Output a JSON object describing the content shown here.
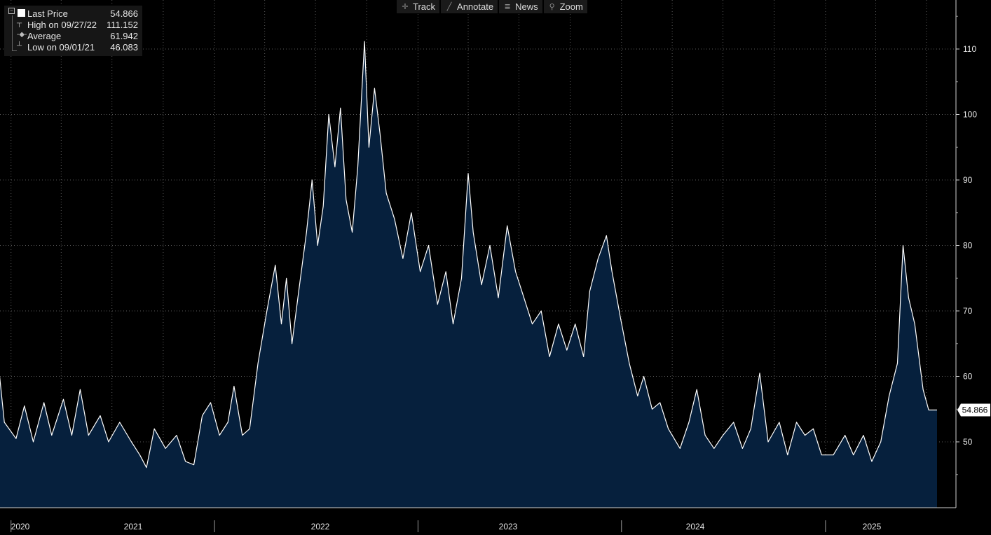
{
  "toolbar": {
    "track": "Track",
    "annotate": "Annotate",
    "news": "News",
    "zoom": "Zoom"
  },
  "legend": {
    "last_label": "Last Price",
    "last_value": "54.866",
    "high_label": "High on 09/27/22",
    "high_value": "111.152",
    "avg_label": "Average",
    "avg_value": "61.942",
    "low_label": "Low on 09/01/21",
    "low_value": "46.083"
  },
  "colors": {
    "background": "#000000",
    "area_fill": "#06203d",
    "line": "#ffffff",
    "grid": "#5a5a5a"
  },
  "chart_data": {
    "type": "area",
    "title": "",
    "xlabel": "",
    "ylabel": "",
    "ylim": [
      40,
      115
    ],
    "x_range": [
      "2020-11-20",
      "2025-07-20"
    ],
    "yticks": [
      50,
      60,
      70,
      80,
      90,
      100,
      110
    ],
    "year_labels": [
      "2020",
      "2021",
      "2022",
      "2023",
      "2024",
      "2025"
    ],
    "grid": true,
    "last_price_label": "54.866",
    "series": [
      {
        "name": "Last Price",
        "points": [
          [
            "2020-11-20",
            58
          ],
          [
            "2020-12-05",
            65.5
          ],
          [
            "2020-12-20",
            53
          ],
          [
            "2021-01-10",
            50.5
          ],
          [
            "2021-01-25",
            55.5
          ],
          [
            "2021-02-10",
            50
          ],
          [
            "2021-03-01",
            56
          ],
          [
            "2021-03-15",
            51
          ],
          [
            "2021-04-05",
            56.5
          ],
          [
            "2021-04-20",
            51
          ],
          [
            "2021-05-05",
            58
          ],
          [
            "2021-05-20",
            51
          ],
          [
            "2021-06-10",
            54
          ],
          [
            "2021-06-25",
            50
          ],
          [
            "2021-07-15",
            53
          ],
          [
            "2021-08-05",
            50
          ],
          [
            "2021-08-20",
            48
          ],
          [
            "2021-09-01",
            46.08
          ],
          [
            "2021-09-15",
            52
          ],
          [
            "2021-10-05",
            49
          ],
          [
            "2021-10-25",
            51
          ],
          [
            "2021-11-10",
            47
          ],
          [
            "2021-11-25",
            46.5
          ],
          [
            "2021-12-10",
            54
          ],
          [
            "2021-12-25",
            56
          ],
          [
            "2022-01-10",
            51
          ],
          [
            "2022-01-25",
            53
          ],
          [
            "2022-02-05",
            58.5
          ],
          [
            "2022-02-20",
            51
          ],
          [
            "2022-03-05",
            52
          ],
          [
            "2022-03-20",
            62
          ],
          [
            "2022-04-05",
            70
          ],
          [
            "2022-04-20",
            77
          ],
          [
            "2022-05-01",
            68
          ],
          [
            "2022-05-10",
            75
          ],
          [
            "2022-05-20",
            65
          ],
          [
            "2022-06-01",
            73
          ],
          [
            "2022-06-15",
            82
          ],
          [
            "2022-06-25",
            90
          ],
          [
            "2022-07-05",
            80
          ],
          [
            "2022-07-15",
            86
          ],
          [
            "2022-07-25",
            100
          ],
          [
            "2022-08-05",
            92
          ],
          [
            "2022-08-15",
            101
          ],
          [
            "2022-08-25",
            87
          ],
          [
            "2022-09-05",
            82
          ],
          [
            "2022-09-15",
            92
          ],
          [
            "2022-09-27",
            111.15
          ],
          [
            "2022-10-05",
            95
          ],
          [
            "2022-10-15",
            104
          ],
          [
            "2022-10-25",
            97
          ],
          [
            "2022-11-05",
            88
          ],
          [
            "2022-11-20",
            84
          ],
          [
            "2022-12-05",
            78
          ],
          [
            "2022-12-20",
            85
          ],
          [
            "2023-01-05",
            76
          ],
          [
            "2023-01-20",
            80
          ],
          [
            "2023-02-05",
            71
          ],
          [
            "2023-02-20",
            76
          ],
          [
            "2023-03-05",
            68
          ],
          [
            "2023-03-20",
            75
          ],
          [
            "2023-04-01",
            91
          ],
          [
            "2023-04-10",
            82
          ],
          [
            "2023-04-25",
            74
          ],
          [
            "2023-05-10",
            80
          ],
          [
            "2023-05-25",
            72
          ],
          [
            "2023-06-10",
            83
          ],
          [
            "2023-06-25",
            76
          ],
          [
            "2023-07-10",
            72
          ],
          [
            "2023-07-25",
            68
          ],
          [
            "2023-08-10",
            70
          ],
          [
            "2023-08-25",
            63
          ],
          [
            "2023-09-10",
            68
          ],
          [
            "2023-09-25",
            64
          ],
          [
            "2023-10-10",
            68
          ],
          [
            "2023-10-25",
            63
          ],
          [
            "2023-11-05",
            73
          ],
          [
            "2023-11-20",
            78
          ],
          [
            "2023-12-05",
            81.5
          ],
          [
            "2023-12-15",
            76
          ],
          [
            "2023-12-30",
            69
          ],
          [
            "2024-01-15",
            62
          ],
          [
            "2024-01-30",
            57
          ],
          [
            "2024-02-10",
            60
          ],
          [
            "2024-02-25",
            55
          ],
          [
            "2024-03-10",
            56
          ],
          [
            "2024-03-25",
            52
          ],
          [
            "2024-04-15",
            49
          ],
          [
            "2024-05-01",
            53
          ],
          [
            "2024-05-15",
            58
          ],
          [
            "2024-05-30",
            51
          ],
          [
            "2024-06-15",
            49
          ],
          [
            "2024-07-01",
            51
          ],
          [
            "2024-07-20",
            53
          ],
          [
            "2024-08-05",
            49
          ],
          [
            "2024-08-20",
            52
          ],
          [
            "2024-09-05",
            60.5
          ],
          [
            "2024-09-20",
            50
          ],
          [
            "2024-10-10",
            53
          ],
          [
            "2024-10-25",
            48
          ],
          [
            "2024-11-10",
            53
          ],
          [
            "2024-11-25",
            51
          ],
          [
            "2024-12-10",
            52
          ],
          [
            "2024-12-25",
            48
          ],
          [
            "2025-01-15",
            48
          ],
          [
            "2025-02-05",
            51
          ],
          [
            "2025-02-20",
            48
          ],
          [
            "2025-03-10",
            51
          ],
          [
            "2025-03-25",
            47
          ],
          [
            "2025-04-10",
            50
          ],
          [
            "2025-04-25",
            57
          ],
          [
            "2025-05-10",
            62
          ],
          [
            "2025-05-20",
            80
          ],
          [
            "2025-05-30",
            72
          ],
          [
            "2025-06-10",
            68
          ],
          [
            "2025-06-25",
            58
          ],
          [
            "2025-07-05",
            54.87
          ],
          [
            "2025-07-20",
            54.87
          ]
        ]
      }
    ]
  }
}
